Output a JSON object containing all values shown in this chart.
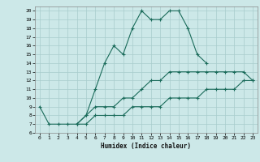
{
  "xlabel": "Humidex (Indice chaleur)",
  "xlim": [
    -0.5,
    23.5
  ],
  "ylim": [
    6,
    20.5
  ],
  "xticks": [
    0,
    1,
    2,
    3,
    4,
    5,
    6,
    7,
    8,
    9,
    10,
    11,
    12,
    13,
    14,
    15,
    16,
    17,
    18,
    19,
    20,
    21,
    22,
    23
  ],
  "yticks": [
    6,
    7,
    8,
    9,
    10,
    11,
    12,
    13,
    14,
    15,
    16,
    17,
    18,
    19,
    20
  ],
  "background_color": "#cce8e8",
  "grid_color": "#a8cccc",
  "line_color": "#1a6b5a",
  "line1_x": [
    0,
    1,
    2,
    3,
    4,
    5,
    6,
    7,
    8,
    9,
    10,
    11,
    12,
    13,
    14,
    15,
    16,
    17,
    18
  ],
  "line1_y": [
    9,
    7,
    7,
    7,
    7,
    8,
    11,
    14,
    16,
    15,
    18,
    20,
    19,
    19,
    20,
    20,
    18,
    15,
    14
  ],
  "line2_x": [
    4,
    5,
    6,
    7,
    8,
    9,
    10,
    11,
    12,
    13,
    14,
    15,
    16,
    17,
    18,
    19,
    20,
    21,
    22,
    23
  ],
  "line2_y": [
    7,
    8,
    9,
    9,
    9,
    10,
    10,
    11,
    12,
    12,
    13,
    13,
    13,
    13,
    13,
    13,
    13,
    13,
    13,
    12
  ],
  "line3_x": [
    4,
    5,
    6,
    7,
    8,
    9,
    10,
    11,
    12,
    13,
    14,
    15,
    16,
    17,
    18,
    19,
    20,
    21,
    22,
    23
  ],
  "line3_y": [
    7,
    7,
    8,
    8,
    8,
    8,
    9,
    9,
    9,
    9,
    10,
    10,
    10,
    10,
    11,
    11,
    11,
    11,
    12,
    12
  ]
}
